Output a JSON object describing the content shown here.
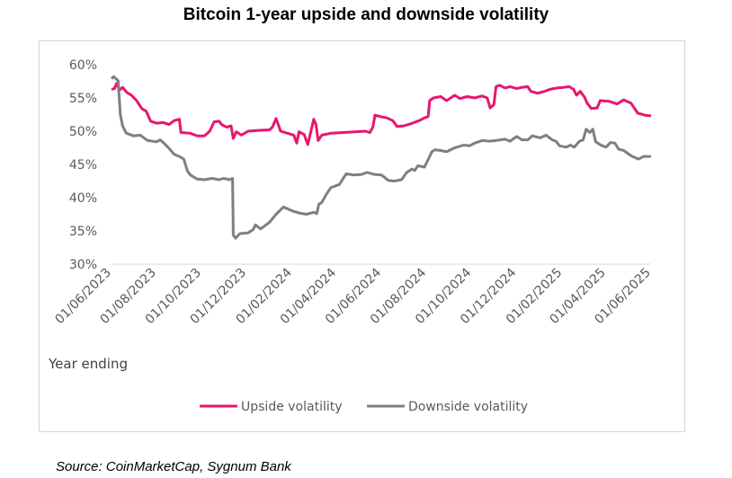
{
  "title": "Bitcoin 1-year upside and downside volatility",
  "source": "Source: CoinMarketCap, Sygnum Bank",
  "chart_data": {
    "type": "line",
    "title": "Bitcoin 1-year upside and downside volatility",
    "xlabel": "Year ending",
    "ylabel": "",
    "ylim": [
      30,
      60
    ],
    "yticks": [
      "30%",
      "35%",
      "40%",
      "45%",
      "50%",
      "55%",
      "60%"
    ],
    "x_range": [
      "2023-06-01",
      "2025-06-01"
    ],
    "xtick_labels": [
      "01/06/2023",
      "01/08/2023",
      "01/10/2023",
      "01/12/2023",
      "01/02/2024",
      "01/04/2024",
      "01/06/2024",
      "01/08/2024",
      "01/10/2024",
      "01/12/2024",
      "01/02/2025",
      "01/04/2025",
      "01/06/2025"
    ],
    "grid": false,
    "legend": "bottom",
    "series": [
      {
        "name": "Upside volatility",
        "color": "#e8166f",
        "points": [
          [
            "2023-06-01",
            56.3
          ],
          [
            "2023-06-05",
            56.4
          ],
          [
            "2023-06-08",
            57.2
          ],
          [
            "2023-06-12",
            56.2
          ],
          [
            "2023-06-16",
            56.6
          ],
          [
            "2023-06-22",
            55.8
          ],
          [
            "2023-06-28",
            55.4
          ],
          [
            "2023-07-05",
            54.6
          ],
          [
            "2023-07-12",
            53.4
          ],
          [
            "2023-07-18",
            53.0
          ],
          [
            "2023-07-24",
            51.5
          ],
          [
            "2023-08-01",
            51.2
          ],
          [
            "2023-08-10",
            51.3
          ],
          [
            "2023-08-18",
            51.0
          ],
          [
            "2023-08-25",
            51.6
          ],
          [
            "2023-09-01",
            51.8
          ],
          [
            "2023-09-03",
            49.8
          ],
          [
            "2023-09-15",
            49.7
          ],
          [
            "2023-09-25",
            49.3
          ],
          [
            "2023-10-05",
            49.3
          ],
          [
            "2023-10-12",
            50.0
          ],
          [
            "2023-10-18",
            51.4
          ],
          [
            "2023-10-25",
            51.5
          ],
          [
            "2023-10-28",
            51.0
          ],
          [
            "2023-11-04",
            50.6
          ],
          [
            "2023-11-10",
            50.8
          ],
          [
            "2023-11-13",
            48.9
          ],
          [
            "2023-11-17",
            49.9
          ],
          [
            "2023-11-24",
            49.4
          ],
          [
            "2023-12-03",
            50.0
          ],
          [
            "2023-12-15",
            50.1
          ],
          [
            "2024-01-01",
            50.2
          ],
          [
            "2024-01-05",
            50.6
          ],
          [
            "2024-01-10",
            51.9
          ],
          [
            "2024-01-16",
            50.0
          ],
          [
            "2024-01-25",
            49.7
          ],
          [
            "2024-02-03",
            49.4
          ],
          [
            "2024-02-07",
            48.2
          ],
          [
            "2024-02-10",
            49.9
          ],
          [
            "2024-02-17",
            49.5
          ],
          [
            "2024-02-22",
            48.0
          ],
          [
            "2024-03-01",
            51.8
          ],
          [
            "2024-03-04",
            51.0
          ],
          [
            "2024-03-07",
            48.6
          ],
          [
            "2024-03-12",
            49.4
          ],
          [
            "2024-03-25",
            49.7
          ],
          [
            "2024-04-10",
            49.8
          ],
          [
            "2024-04-25",
            49.9
          ],
          [
            "2024-05-10",
            50.0
          ],
          [
            "2024-05-16",
            49.8
          ],
          [
            "2024-05-20",
            50.6
          ],
          [
            "2024-05-23",
            52.4
          ],
          [
            "2024-05-30",
            52.2
          ],
          [
            "2024-06-08",
            52.0
          ],
          [
            "2024-06-16",
            51.6
          ],
          [
            "2024-06-22",
            50.7
          ],
          [
            "2024-07-01",
            50.8
          ],
          [
            "2024-07-10",
            51.1
          ],
          [
            "2024-07-22",
            51.6
          ],
          [
            "2024-07-29",
            52.0
          ],
          [
            "2024-08-03",
            52.2
          ],
          [
            "2024-08-05",
            54.6
          ],
          [
            "2024-08-10",
            55.0
          ],
          [
            "2024-08-20",
            55.2
          ],
          [
            "2024-08-28",
            54.6
          ],
          [
            "2024-09-08",
            55.4
          ],
          [
            "2024-09-15",
            54.9
          ],
          [
            "2024-09-25",
            55.2
          ],
          [
            "2024-10-05",
            55.0
          ],
          [
            "2024-10-15",
            55.3
          ],
          [
            "2024-10-22",
            55.0
          ],
          [
            "2024-10-26",
            53.5
          ],
          [
            "2024-10-31",
            54.0
          ],
          [
            "2024-11-03",
            56.7
          ],
          [
            "2024-11-08",
            56.9
          ],
          [
            "2024-11-15",
            56.5
          ],
          [
            "2024-11-22",
            56.7
          ],
          [
            "2024-12-01",
            56.4
          ],
          [
            "2024-12-08",
            56.6
          ],
          [
            "2024-12-16",
            56.7
          ],
          [
            "2024-12-20",
            56.0
          ],
          [
            "2024-12-29",
            55.7
          ],
          [
            "2025-01-08",
            56.0
          ],
          [
            "2025-01-15",
            56.3
          ],
          [
            "2025-01-25",
            56.5
          ],
          [
            "2025-02-03",
            56.6
          ],
          [
            "2025-02-10",
            56.7
          ],
          [
            "2025-02-16",
            56.3
          ],
          [
            "2025-02-20",
            55.4
          ],
          [
            "2025-02-25",
            56.0
          ],
          [
            "2025-03-03",
            55.1
          ],
          [
            "2025-03-06",
            54.3
          ],
          [
            "2025-03-12",
            53.4
          ],
          [
            "2025-03-20",
            53.5
          ],
          [
            "2025-03-24",
            54.6
          ],
          [
            "2025-04-05",
            54.5
          ],
          [
            "2025-04-16",
            54.1
          ],
          [
            "2025-04-25",
            54.7
          ],
          [
            "2025-05-05",
            54.2
          ],
          [
            "2025-05-14",
            52.7
          ],
          [
            "2025-05-24",
            52.4
          ],
          [
            "2025-06-01",
            52.3
          ]
        ]
      },
      {
        "name": "Downside volatility",
        "color": "#7f7f7f",
        "points": [
          [
            "2023-06-01",
            57.9
          ],
          [
            "2023-06-04",
            58.2
          ],
          [
            "2023-06-10",
            57.6
          ],
          [
            "2023-06-13",
            52.5
          ],
          [
            "2023-06-16",
            50.8
          ],
          [
            "2023-06-21",
            49.7
          ],
          [
            "2023-07-01",
            49.3
          ],
          [
            "2023-07-10",
            49.4
          ],
          [
            "2023-07-20",
            48.6
          ],
          [
            "2023-08-01",
            48.4
          ],
          [
            "2023-08-06",
            48.7
          ],
          [
            "2023-08-12",
            48.1
          ],
          [
            "2023-08-18",
            47.4
          ],
          [
            "2023-08-25",
            46.5
          ],
          [
            "2023-09-01",
            46.2
          ],
          [
            "2023-09-07",
            45.8
          ],
          [
            "2023-09-12",
            44.0
          ],
          [
            "2023-09-16",
            43.4
          ],
          [
            "2023-09-25",
            42.8
          ],
          [
            "2023-10-05",
            42.7
          ],
          [
            "2023-10-15",
            42.9
          ],
          [
            "2023-10-25",
            42.7
          ],
          [
            "2023-10-31",
            42.9
          ],
          [
            "2023-11-08",
            42.7
          ],
          [
            "2023-11-12",
            42.9
          ],
          [
            "2023-11-13",
            34.4
          ],
          [
            "2023-11-16",
            33.9
          ],
          [
            "2023-11-22",
            34.6
          ],
          [
            "2023-12-03",
            34.7
          ],
          [
            "2023-12-10",
            35.2
          ],
          [
            "2023-12-13",
            35.9
          ],
          [
            "2023-12-20",
            35.3
          ],
          [
            "2024-01-01",
            36.3
          ],
          [
            "2024-01-10",
            37.5
          ],
          [
            "2024-01-20",
            38.6
          ],
          [
            "2024-02-01",
            38.0
          ],
          [
            "2024-02-10",
            37.7
          ],
          [
            "2024-02-20",
            37.5
          ],
          [
            "2024-03-01",
            37.8
          ],
          [
            "2024-03-05",
            37.6
          ],
          [
            "2024-03-08",
            39.0
          ],
          [
            "2024-03-12",
            39.3
          ],
          [
            "2024-03-18",
            40.5
          ],
          [
            "2024-03-24",
            41.5
          ],
          [
            "2024-04-05",
            42.0
          ],
          [
            "2024-04-10",
            42.9
          ],
          [
            "2024-04-14",
            43.6
          ],
          [
            "2024-04-25",
            43.4
          ],
          [
            "2024-05-05",
            43.5
          ],
          [
            "2024-05-12",
            43.8
          ],
          [
            "2024-05-22",
            43.5
          ],
          [
            "2024-06-01",
            43.4
          ],
          [
            "2024-06-10",
            42.6
          ],
          [
            "2024-06-18",
            42.5
          ],
          [
            "2024-06-28",
            42.7
          ],
          [
            "2024-07-05",
            43.8
          ],
          [
            "2024-07-12",
            44.3
          ],
          [
            "2024-07-16",
            44.1
          ],
          [
            "2024-07-20",
            44.8
          ],
          [
            "2024-07-29",
            44.6
          ],
          [
            "2024-08-05",
            46.2
          ],
          [
            "2024-08-08",
            46.9
          ],
          [
            "2024-08-12",
            47.2
          ],
          [
            "2024-08-20",
            47.1
          ],
          [
            "2024-08-28",
            46.9
          ],
          [
            "2024-09-08",
            47.5
          ],
          [
            "2024-09-20",
            47.9
          ],
          [
            "2024-09-28",
            47.8
          ],
          [
            "2024-10-05",
            48.2
          ],
          [
            "2024-10-15",
            48.6
          ],
          [
            "2024-10-25",
            48.5
          ],
          [
            "2024-11-03",
            48.6
          ],
          [
            "2024-11-15",
            48.8
          ],
          [
            "2024-11-22",
            48.5
          ],
          [
            "2024-12-01",
            49.2
          ],
          [
            "2024-12-08",
            48.7
          ],
          [
            "2024-12-16",
            48.7
          ],
          [
            "2024-12-22",
            49.3
          ],
          [
            "2025-01-02",
            49.0
          ],
          [
            "2025-01-10",
            49.4
          ],
          [
            "2025-01-18",
            48.7
          ],
          [
            "2025-01-23",
            48.5
          ],
          [
            "2025-01-28",
            47.8
          ],
          [
            "2025-02-06",
            47.6
          ],
          [
            "2025-02-12",
            47.9
          ],
          [
            "2025-02-17",
            47.6
          ],
          [
            "2025-02-24",
            48.5
          ],
          [
            "2025-03-01",
            48.7
          ],
          [
            "2025-03-05",
            50.3
          ],
          [
            "2025-03-10",
            49.8
          ],
          [
            "2025-03-14",
            50.3
          ],
          [
            "2025-03-18",
            48.4
          ],
          [
            "2025-03-25",
            47.9
          ],
          [
            "2025-04-01",
            47.6
          ],
          [
            "2025-04-07",
            48.3
          ],
          [
            "2025-04-13",
            48.2
          ],
          [
            "2025-04-18",
            47.3
          ],
          [
            "2025-04-25",
            47.1
          ],
          [
            "2025-05-05",
            46.3
          ],
          [
            "2025-05-15",
            45.8
          ],
          [
            "2025-05-22",
            46.2
          ],
          [
            "2025-06-01",
            46.2
          ]
        ]
      }
    ]
  }
}
